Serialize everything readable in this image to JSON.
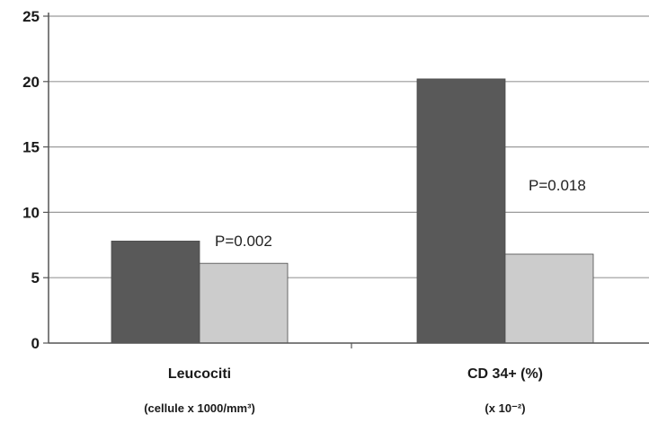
{
  "chart_data": {
    "type": "bar",
    "categories": [
      "Leucociti",
      "CD 34+ (%)"
    ],
    "category_sublabels": [
      "(cellule x 1000/mm³)",
      "(x 10⁻²)"
    ],
    "series": [
      {
        "values": [
          7.8,
          20.2
        ],
        "color": "#595959"
      },
      {
        "values": [
          6.1,
          6.8
        ],
        "color": "#cccccc"
      }
    ],
    "annotations": [
      "P=0.002",
      "P=0.018"
    ],
    "title": "",
    "xlabel": "",
    "ylabel": "",
    "ylim": [
      0,
      25
    ],
    "yticks": [
      "0",
      "5",
      "10",
      "15",
      "20",
      "25"
    ],
    "grid": true,
    "legend": "none"
  }
}
